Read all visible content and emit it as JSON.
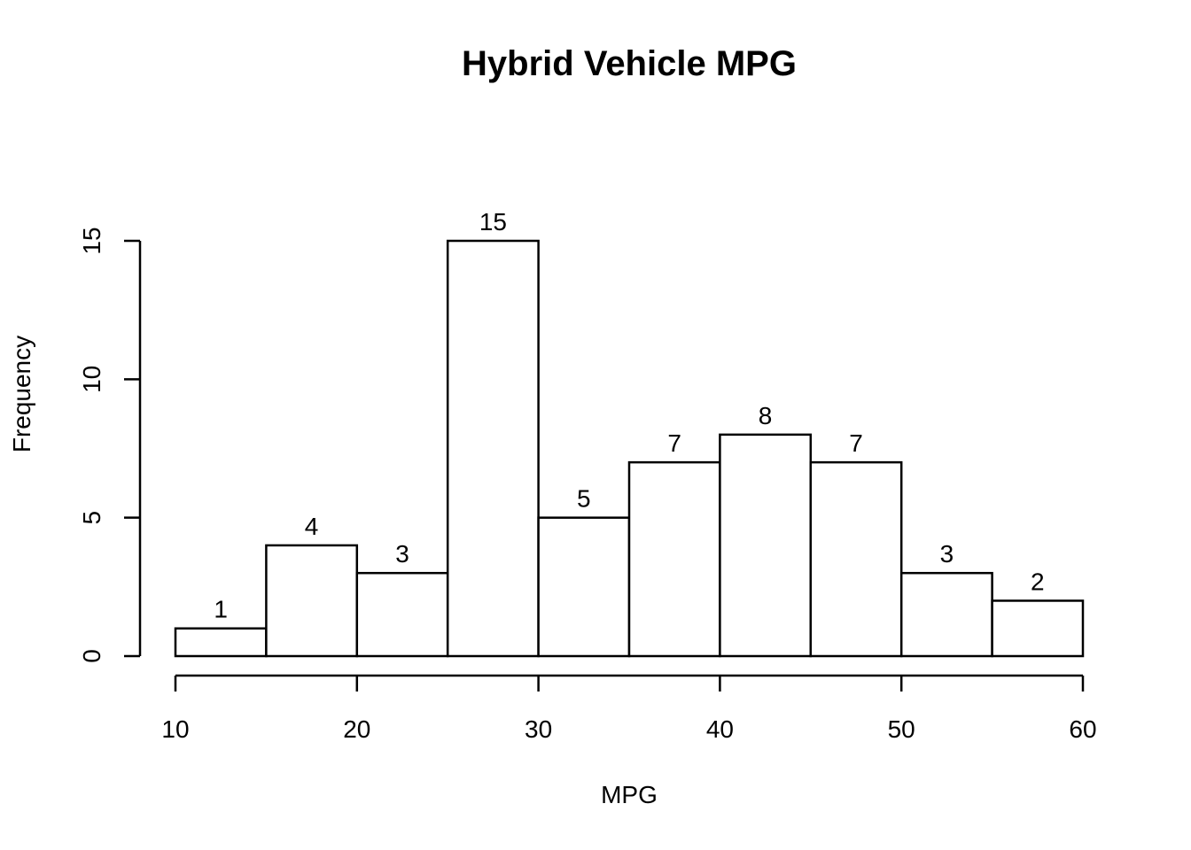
{
  "chart_data": {
    "type": "bar",
    "variant": "histogram",
    "title": "Hybrid Vehicle MPG",
    "xlabel": "MPG",
    "ylabel": "Frequency",
    "bin_edges": [
      10,
      15,
      20,
      25,
      30,
      35,
      40,
      45,
      50,
      55,
      60
    ],
    "counts": [
      1,
      4,
      3,
      15,
      5,
      7,
      8,
      7,
      3,
      2
    ],
    "bar_labels": [
      "1",
      "4",
      "3",
      "15",
      "5",
      "7",
      "8",
      "7",
      "3",
      "2"
    ],
    "x_ticks": [
      10,
      20,
      30,
      40,
      50,
      60
    ],
    "x_tick_labels": [
      "10",
      "20",
      "30",
      "40",
      "50",
      "60"
    ],
    "y_ticks": [
      0,
      5,
      10,
      15
    ],
    "y_tick_labels": [
      "0",
      "5",
      "10",
      "15"
    ],
    "xlim": [
      10,
      60
    ],
    "ylim": [
      0,
      15
    ],
    "grid": false,
    "legend": "none",
    "y_tick_label_orientation": "rotated-90",
    "colors": {
      "background": "#ffffff",
      "bar_fill": "#ffffff",
      "bar_stroke": "#000000",
      "axis": "#000000",
      "text": "#000000"
    }
  }
}
